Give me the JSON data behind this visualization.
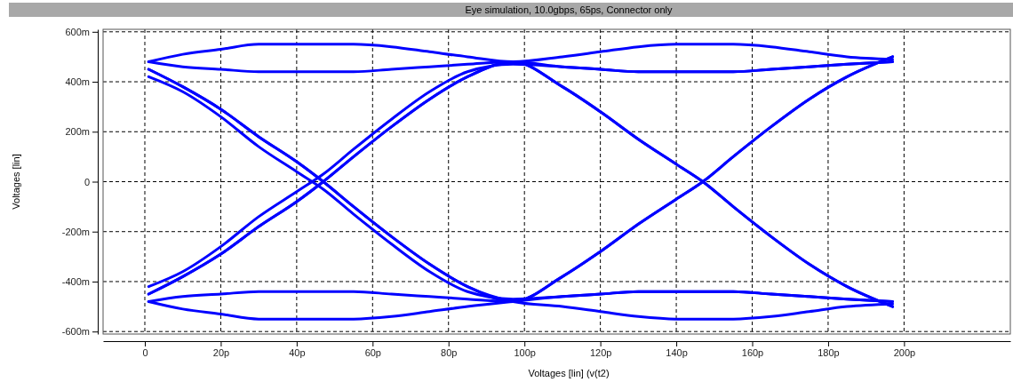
{
  "chart_data": {
    "type": "line",
    "title": "Eye simulation, 10.0gbps, 65ps, Connector only",
    "xlabel": "Voltages [lin] (v(t2)",
    "ylabel": "Voltages [lin]",
    "x": [
      1,
      10,
      20,
      30,
      40,
      47,
      55,
      65,
      75,
      85,
      97,
      110,
      120,
      130,
      140,
      147,
      155,
      165,
      175,
      185,
      197
    ],
    "xlim": [
      -11,
      228
    ],
    "ylim": [
      -610,
      610
    ],
    "xticks": [
      0,
      {
        "value": 20,
        "label": "20p"
      },
      {
        "value": 40,
        "label": "40p"
      },
      {
        "value": 60,
        "label": "60p"
      },
      {
        "value": 80,
        "label": "80p"
      },
      {
        "value": 100,
        "label": "100p"
      },
      {
        "value": 120,
        "label": "120p"
      },
      {
        "value": 140,
        "label": "140p"
      },
      {
        "value": 160,
        "label": "160p"
      },
      {
        "value": 180,
        "label": "180p"
      },
      {
        "value": 200,
        "label": "200p"
      }
    ],
    "yticks": [
      {
        "value": -600,
        "label": "-600m"
      },
      {
        "value": -400,
        "label": "-400m"
      },
      {
        "value": -200,
        "label": "-200m"
      },
      0,
      {
        "value": 200,
        "label": "200m"
      },
      {
        "value": 400,
        "label": "400m"
      },
      {
        "value": 600,
        "label": "600m"
      }
    ],
    "grid": true,
    "marker": "none",
    "line_style": "solid",
    "series": [
      {
        "color": "#0000ff",
        "values": [
          480,
          510,
          530,
          550,
          550,
          550,
          550,
          540,
          520,
          500,
          480,
          500,
          520,
          540,
          550,
          550,
          550,
          540,
          520,
          500,
          490
        ]
      },
      {
        "color": "#0000ff",
        "values": [
          480,
          460,
          450,
          440,
          440,
          440,
          440,
          450,
          460,
          470,
          480,
          380,
          280,
          170,
          70,
          0,
          -100,
          -220,
          -330,
          -420,
          -500
        ]
      },
      {
        "color": "#0000ff",
        "values": [
          450,
          380,
          290,
          180,
          80,
          0,
          -100,
          -220,
          -330,
          -420,
          -480,
          -500,
          -520,
          -540,
          -550,
          -550,
          -550,
          -540,
          -520,
          -500,
          -490
        ]
      },
      {
        "color": "#0000ff",
        "values": [
          450,
          380,
          290,
          180,
          80,
          0,
          -100,
          -220,
          -330,
          -420,
          -480,
          -380,
          -280,
          -170,
          -70,
          0,
          100,
          220,
          330,
          420,
          500
        ]
      },
      {
        "color": "#0000ff",
        "values": [
          -450,
          -380,
          -290,
          -180,
          -80,
          0,
          100,
          220,
          330,
          420,
          480,
          380,
          280,
          170,
          70,
          0,
          -100,
          -220,
          -330,
          -420,
          -500
        ]
      },
      {
        "color": "#0000ff",
        "values": [
          -450,
          -380,
          -290,
          -180,
          -80,
          0,
          100,
          220,
          330,
          420,
          480,
          460,
          450,
          440,
          440,
          440,
          440,
          450,
          460,
          470,
          480
        ]
      },
      {
        "color": "#0000ff",
        "values": [
          -480,
          -460,
          -450,
          -440,
          -440,
          -440,
          -440,
          -450,
          -460,
          -470,
          -480,
          -380,
          -280,
          -170,
          -70,
          0,
          100,
          220,
          330,
          420,
          500
        ]
      },
      {
        "color": "#0000ff",
        "values": [
          -480,
          -510,
          -530,
          -550,
          -550,
          -550,
          -550,
          -540,
          -520,
          -500,
          -480,
          -460,
          -450,
          -440,
          -440,
          -440,
          -440,
          -450,
          -460,
          -470,
          -480
        ]
      },
      {
        "color": "#0000ff",
        "values": [
          420,
          360,
          260,
          140,
          40,
          -30,
          -130,
          -250,
          -360,
          -440,
          -470,
          -460,
          -450,
          -440,
          -440,
          -440,
          -440,
          -450,
          -460,
          -470,
          -480
        ]
      },
      {
        "color": "#0000ff",
        "values": [
          -420,
          -360,
          -260,
          -140,
          -40,
          30,
          130,
          250,
          360,
          440,
          470,
          460,
          450,
          440,
          440,
          440,
          440,
          450,
          460,
          470,
          480
        ]
      }
    ]
  }
}
